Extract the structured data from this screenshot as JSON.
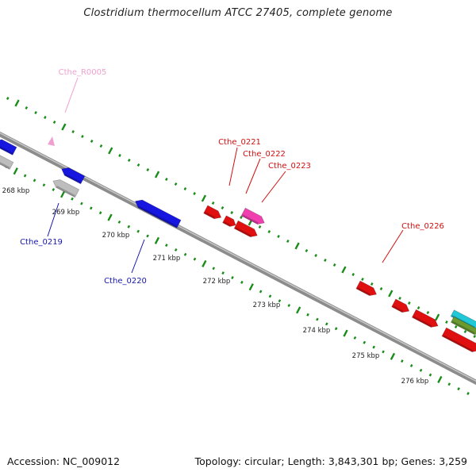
{
  "title": "Clostridium thermocellum ATCC 27405, complete genome",
  "footer": {
    "accession": "Accession: NC_009012",
    "summary": "Topology: circular; Length: 3,843,301 bp; Genes: 3,259"
  },
  "colors": {
    "backbone": "#8c8c8c",
    "tick": "#1a8c1a",
    "forward_gene": "#e01010",
    "reverse_gene": "#1616e0",
    "pseudo_gene": "#bdbdbd",
    "rna": "#f0a0d0",
    "highlight_gene": "#f040b0",
    "cyan_feature": "#20c8d8",
    "olive_feature": "#6a9a30"
  },
  "ruler": [
    "268 kbp",
    "269 kbp",
    "270 kbp",
    "271 kbp",
    "272 kbp",
    "273 kbp",
    "274 kbp",
    "275 kbp",
    "276 kbp"
  ],
  "gene_labels": [
    {
      "id": "Cthe_R0005",
      "color": "#f0a0d0"
    },
    {
      "id": "Cthe_0219",
      "color": "#1616b0"
    },
    {
      "id": "Cthe_0220",
      "color": "#1616b0"
    },
    {
      "id": "Cthe_0221",
      "color": "#d01010"
    },
    {
      "id": "Cthe_0222",
      "color": "#d01010"
    },
    {
      "id": "Cthe_0223",
      "color": "#d01010"
    },
    {
      "id": "Cthe_0226",
      "color": "#d01010"
    }
  ]
}
